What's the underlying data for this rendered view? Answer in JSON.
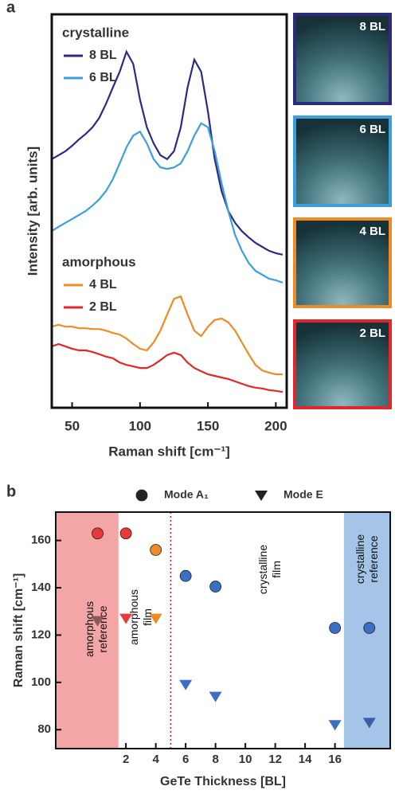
{
  "chart_data": [
    {
      "type": "line",
      "panel": "a",
      "xlabel": "Raman shift [cm⁻¹]",
      "ylabel": "Intensity [arb. units]",
      "xlim": [
        35,
        208
      ],
      "ylim": [
        0,
        100
      ],
      "xticks": [
        50,
        100,
        150,
        200
      ],
      "legend_titles": [
        {
          "text": "crystalline",
          "color": "#3b3ea8"
        },
        {
          "text": "amorphous",
          "color": "#e2262b"
        }
      ],
      "x": [
        35,
        40,
        45,
        50,
        55,
        60,
        65,
        70,
        75,
        80,
        85,
        90,
        95,
        100,
        105,
        110,
        115,
        120,
        125,
        130,
        135,
        140,
        145,
        150,
        155,
        160,
        165,
        170,
        175,
        180,
        185,
        190,
        195,
        200,
        205
      ],
      "series": [
        {
          "name": "8 BL",
          "color": "#2b2a86",
          "values": [
            63.2,
            64.2,
            65.2,
            66.6,
            68.2,
            69.6,
            71.3,
            73.7,
            77.3,
            81.4,
            85.4,
            90.5,
            87.4,
            78.3,
            71.3,
            67.2,
            64.2,
            63.2,
            65.2,
            71.3,
            81.4,
            88.5,
            85.4,
            75.3,
            63.2,
            55.1,
            50.0,
            47.0,
            44.9,
            43.3,
            41.9,
            40.9,
            39.9,
            39.3,
            38.9
          ]
        },
        {
          "name": "6 BL",
          "color": "#3aa0dc",
          "values": [
            44.9,
            46.0,
            47.0,
            48.0,
            49.0,
            50.0,
            51.4,
            53.0,
            55.1,
            58.1,
            62.1,
            66.2,
            69.2,
            70.2,
            67.2,
            63.2,
            61.1,
            60.7,
            61.1,
            62.1,
            65.2,
            69.2,
            72.3,
            71.3,
            65.2,
            57.1,
            50.0,
            43.9,
            39.9,
            36.8,
            34.8,
            33.8,
            32.8,
            32.4,
            31.8
          ]
        },
        {
          "name": "4 BL",
          "color": "#f08a24",
          "values": [
            20.6,
            21.1,
            20.6,
            20.6,
            20.2,
            20.2,
            20.0,
            20.0,
            19.6,
            19.0,
            18.6,
            17.6,
            16.2,
            15.0,
            14.6,
            16.6,
            19.6,
            23.7,
            27.7,
            28.3,
            23.7,
            19.6,
            18.2,
            20.6,
            22.3,
            22.7,
            21.7,
            19.6,
            16.6,
            13.6,
            10.9,
            9.5,
            8.9,
            8.5,
            8.5
          ]
        },
        {
          "name": "2 BL",
          "color": "#e2262b",
          "values": [
            15.6,
            16.2,
            15.6,
            15.0,
            14.6,
            14.6,
            14.2,
            13.6,
            13.0,
            12.6,
            11.5,
            10.9,
            10.5,
            10.1,
            10.1,
            10.9,
            12.1,
            13.4,
            14.0,
            13.4,
            11.5,
            10.1,
            9.3,
            8.5,
            8.1,
            7.7,
            7.3,
            6.7,
            6.1,
            5.5,
            5.1,
            4.9,
            4.5,
            4.3,
            4.0
          ]
        }
      ],
      "insets": [
        {
          "label": "8 BL",
          "color": "#2e2a7a"
        },
        {
          "label": "6 BL",
          "color": "#3aa0dc"
        },
        {
          "label": "4 BL",
          "color": "#f08a24"
        },
        {
          "label": "2 BL",
          "color": "#e2262b"
        }
      ]
    },
    {
      "type": "scatter",
      "panel": "b",
      "xlabel": "GeTe Thickness [BL]",
      "ylabel": "Raman shift [cm⁻¹]",
      "xlim": [
        -2.7,
        19.7
      ],
      "ylim": [
        72,
        172
      ],
      "xticks": [
        2,
        4,
        6,
        8,
        10,
        12,
        14,
        16
      ],
      "yticks": [
        80,
        100,
        120,
        140,
        160
      ],
      "spans": [
        {
          "xlim": [
            -2.7,
            1.5
          ],
          "color": "#f4a6a6"
        },
        {
          "xlim": [
            16.6,
            19.7
          ],
          "color": "#a4c4e8"
        }
      ],
      "vline": 5,
      "annotations": [
        [
          "amorphous",
          "reference"
        ],
        [
          "amorphous",
          "film"
        ],
        [
          "crystalline",
          "film"
        ],
        [
          "crystalline",
          "reference"
        ]
      ],
      "x": [
        0.1,
        2,
        4,
        6,
        8,
        16,
        18.3
      ],
      "series": [
        {
          "name": "Mode A₁",
          "marker": "circle",
          "colors": [
            "#e8393a",
            "#e8393a",
            "#f08a24",
            "#3a6fc4",
            "#3a6fc4",
            "#3a6fc4",
            "#3a6fc4"
          ],
          "values": [
            163,
            163,
            156,
            145,
            140.5,
            123,
            123
          ]
        },
        {
          "name": "Mode E",
          "marker": "triangle",
          "colors": [
            "#8a5a5a",
            "#e8393a",
            "#f08a24",
            "#3a6fc4",
            "#3a6fc4",
            "#3a6fc4",
            "#3a5fa4"
          ],
          "values": [
            126,
            127,
            127,
            99,
            94,
            82,
            83
          ]
        }
      ]
    }
  ]
}
